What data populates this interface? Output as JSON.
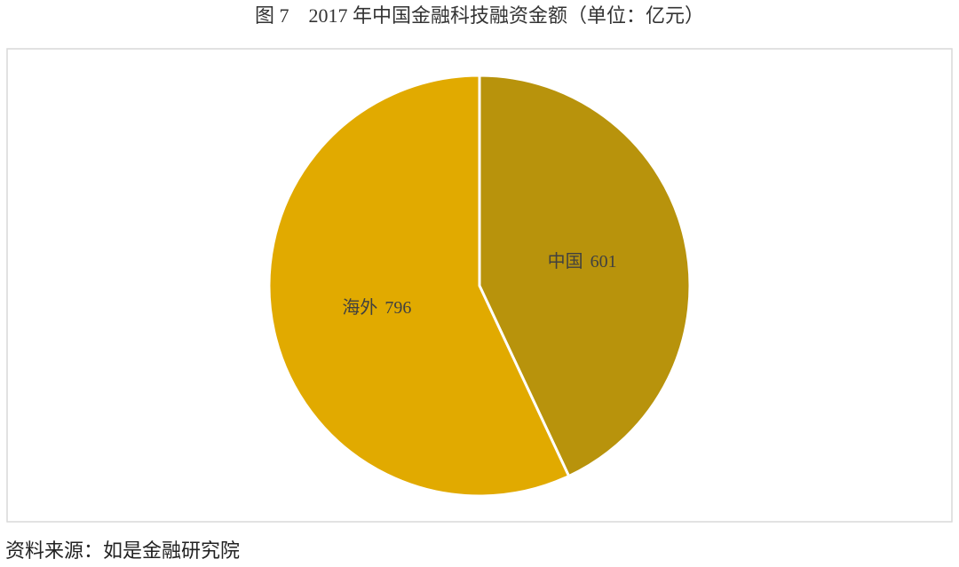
{
  "chart_data": {
    "type": "pie",
    "title": "图 7　2017 年中国金融科技融资金额（单位：亿元）",
    "categories": [
      "中国",
      "海外"
    ],
    "values": [
      601,
      796
    ],
    "colors": [
      "#b8930c",
      "#e1aa00"
    ],
    "source": "资料来源：如是金融研究院"
  }
}
